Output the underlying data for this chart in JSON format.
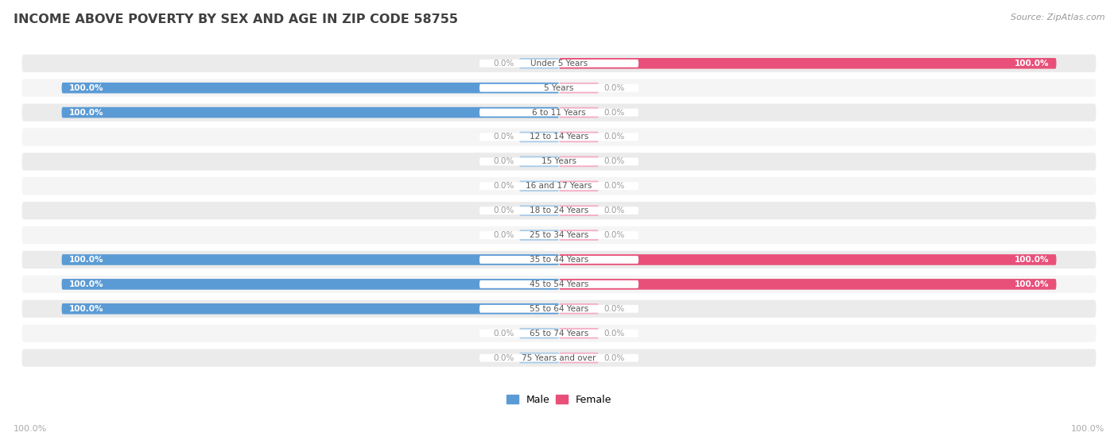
{
  "title": "INCOME ABOVE POVERTY BY SEX AND AGE IN ZIP CODE 58755",
  "source": "Source: ZipAtlas.com",
  "categories": [
    "Under 5 Years",
    "5 Years",
    "6 to 11 Years",
    "12 to 14 Years",
    "15 Years",
    "16 and 17 Years",
    "18 to 24 Years",
    "25 to 34 Years",
    "35 to 44 Years",
    "45 to 54 Years",
    "55 to 64 Years",
    "65 to 74 Years",
    "75 Years and over"
  ],
  "male": [
    0.0,
    100.0,
    100.0,
    0.0,
    0.0,
    0.0,
    0.0,
    0.0,
    100.0,
    100.0,
    100.0,
    0.0,
    0.0
  ],
  "female": [
    100.0,
    0.0,
    0.0,
    0.0,
    0.0,
    0.0,
    0.0,
    0.0,
    100.0,
    100.0,
    0.0,
    0.0,
    0.0
  ],
  "male_color_full": "#5b9bd5",
  "male_color_stub": "#aacce8",
  "female_color_full": "#e8507a",
  "female_color_stub": "#f4aec4",
  "row_bg_color": "#ebebeb",
  "row_bg_alt": "#f5f5f5",
  "label_white": "#ffffff",
  "label_gray": "#999999",
  "title_color": "#404040",
  "source_color": "#999999",
  "center_label_bg": "#ffffff",
  "center_label_color": "#555555",
  "footer_color": "#aaaaaa",
  "legend_male": "#5b9bd5",
  "legend_female": "#e8507a"
}
